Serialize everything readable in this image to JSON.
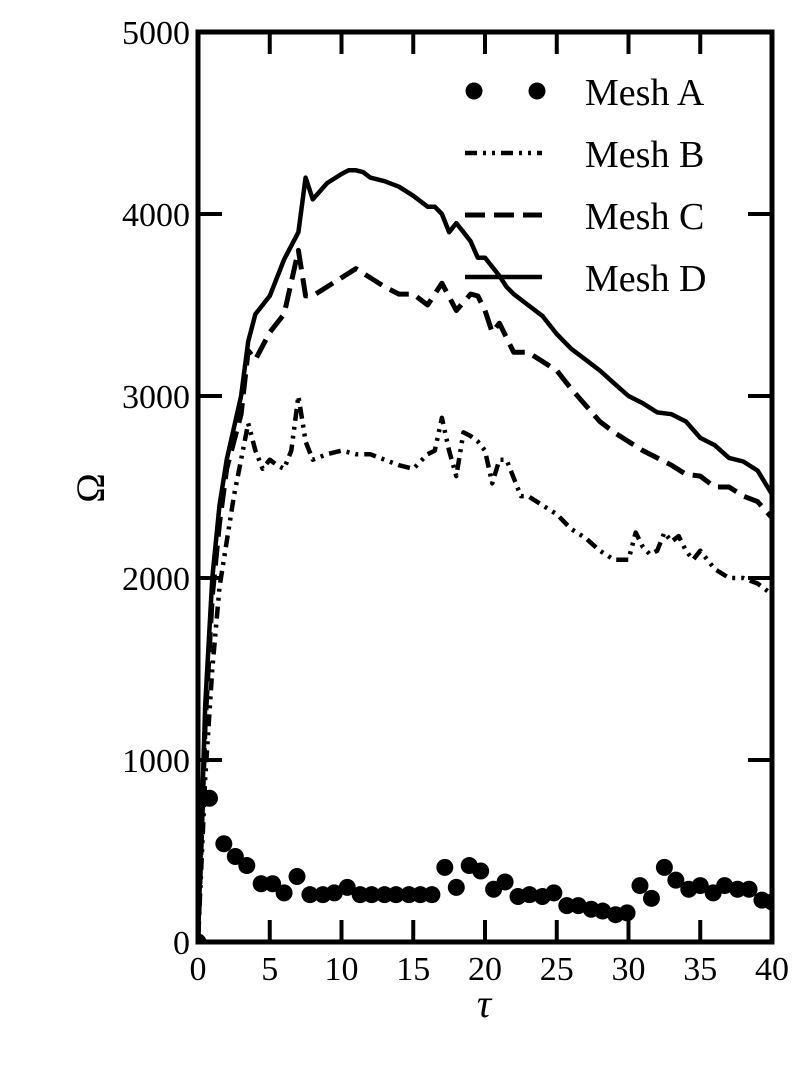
{
  "chart_data": {
    "type": "line",
    "title": "",
    "xlabel": "τ",
    "ylabel": "Ω",
    "xlim": [
      0,
      40
    ],
    "ylim": [
      0,
      5000
    ],
    "xticks": [
      0,
      5,
      10,
      15,
      20,
      25,
      30,
      35,
      40
    ],
    "yticks": [
      0,
      1000,
      2000,
      3000,
      4000,
      5000
    ],
    "xtick_labels": [
      "0",
      "5",
      "10",
      "15",
      "20",
      "25",
      "30",
      "35",
      "40"
    ],
    "ytick_labels": [
      "0",
      "1000",
      "2000",
      "3000",
      "4000",
      "5000"
    ],
    "grid": false,
    "legend_position": "top-right",
    "series": [
      {
        "name": "Mesh A",
        "style": "dots",
        "x": [
          0,
          0.8,
          1.8,
          2.6,
          3.4,
          4.4,
          5.2,
          6.0,
          6.9,
          7.8,
          8.7,
          9.5,
          10.4,
          11.3,
          12.1,
          13.0,
          13.8,
          14.7,
          15.5,
          16.3,
          17.2,
          18.0,
          18.9,
          19.7,
          20.6,
          21.4,
          22.3,
          23.1,
          24.0,
          24.8,
          25.7,
          26.5,
          27.4,
          28.2,
          29.1,
          29.9,
          30.8,
          31.6,
          32.5,
          33.3,
          34.2,
          35.0,
          35.9,
          36.7,
          37.6,
          38.4,
          39.3,
          40.0
        ],
        "values": [
          0,
          790,
          540,
          470,
          420,
          320,
          320,
          270,
          360,
          260,
          260,
          270,
          300,
          260,
          260,
          260,
          260,
          260,
          260,
          260,
          410,
          300,
          420,
          390,
          290,
          330,
          250,
          260,
          250,
          270,
          200,
          200,
          180,
          170,
          150,
          160,
          310,
          240,
          410,
          340,
          290,
          310,
          270,
          310,
          290,
          290,
          230,
          220
        ]
      },
      {
        "name": "Mesh B",
        "style": "dash-dot-dot",
        "x": [
          0,
          0.5,
          1.0,
          1.5,
          2.0,
          2.5,
          3.0,
          3.5,
          4.0,
          4.5,
          5.0,
          5.5,
          6.0,
          6.5,
          7.0,
          7.5,
          8.0,
          9.0,
          10.0,
          11.0,
          12.0,
          13.0,
          14.0,
          15.0,
          16.0,
          16.5,
          17.0,
          17.5,
          18.0,
          18.5,
          19.0,
          19.5,
          20.0,
          20.5,
          21.0,
          21.5,
          22.0,
          22.5,
          23.0,
          24.0,
          25.0,
          26.0,
          27.0,
          28.0,
          29.0,
          30.0,
          30.5,
          31.0,
          31.5,
          32.0,
          32.5,
          33.0,
          33.5,
          34.0,
          34.5,
          35.0,
          35.5,
          36.0,
          37.0,
          38.0,
          39.0,
          40.0
        ],
        "values": [
          0,
          900,
          1500,
          1950,
          2200,
          2450,
          2650,
          2850,
          2700,
          2600,
          2650,
          2620,
          2600,
          2700,
          3000,
          2750,
          2650,
          2680,
          2700,
          2680,
          2680,
          2650,
          2620,
          2600,
          2680,
          2700,
          2880,
          2700,
          2560,
          2800,
          2780,
          2750,
          2700,
          2520,
          2650,
          2650,
          2550,
          2450,
          2450,
          2400,
          2350,
          2270,
          2220,
          2150,
          2100,
          2100,
          2250,
          2170,
          2130,
          2150,
          2250,
          2200,
          2230,
          2150,
          2100,
          2150,
          2100,
          2050,
          2000,
          2000,
          1970,
          1910
        ]
      },
      {
        "name": "Mesh C",
        "style": "dashed",
        "x": [
          0,
          0.5,
          1.0,
          1.5,
          2.0,
          3.0,
          3.5,
          4.0,
          5.0,
          6.0,
          7.0,
          7.5,
          8.0,
          9.0,
          10.0,
          11.0,
          12.0,
          13.0,
          14.0,
          15.0,
          16.0,
          17.0,
          18.0,
          19.0,
          19.5,
          20.0,
          20.5,
          21.0,
          22.0,
          23.0,
          24.0,
          25.0,
          26.0,
          27.0,
          28.0,
          29.0,
          30.0,
          31.0,
          32.0,
          33.0,
          34.0,
          35.0,
          36.0,
          37.0,
          38.0,
          39.0,
          40.0
        ],
        "values": [
          0,
          1200,
          1900,
          2300,
          2600,
          2900,
          3250,
          3200,
          3350,
          3450,
          3800,
          3550,
          3550,
          3600,
          3650,
          3700,
          3650,
          3600,
          3560,
          3560,
          3500,
          3620,
          3470,
          3560,
          3550,
          3470,
          3350,
          3400,
          3240,
          3240,
          3190,
          3140,
          3040,
          2950,
          2860,
          2800,
          2750,
          2700,
          2660,
          2620,
          2570,
          2560,
          2500,
          2500,
          2450,
          2420,
          2330
        ]
      },
      {
        "name": "Mesh D",
        "style": "solid",
        "x": [
          0,
          0.5,
          1.0,
          1.5,
          2.0,
          3.0,
          3.5,
          4.0,
          4.5,
          5.0,
          6.0,
          7.0,
          7.5,
          8.0,
          9.0,
          10.0,
          10.5,
          11.0,
          11.5,
          12.0,
          13.0,
          14.0,
          15.0,
          16.0,
          16.5,
          17.0,
          17.5,
          18.0,
          18.5,
          19.0,
          19.5,
          20.0,
          21.0,
          21.5,
          22.0,
          23.0,
          24.0,
          25.0,
          26.0,
          27.0,
          28.0,
          29.0,
          30.0,
          31.0,
          32.0,
          33.0,
          34.0,
          35.0,
          36.0,
          37.0,
          38.0,
          39.0,
          40.0
        ],
        "values": [
          0,
          1300,
          2000,
          2400,
          2650,
          3000,
          3300,
          3450,
          3500,
          3550,
          3750,
          3900,
          4200,
          4080,
          4170,
          4220,
          4240,
          4240,
          4230,
          4200,
          4180,
          4150,
          4100,
          4040,
          4040,
          4000,
          3900,
          3950,
          3900,
          3850,
          3760,
          3760,
          3660,
          3600,
          3560,
          3500,
          3440,
          3340,
          3260,
          3200,
          3140,
          3070,
          3000,
          2960,
          2910,
          2900,
          2860,
          2770,
          2730,
          2660,
          2640,
          2590,
          2460
        ]
      }
    ]
  }
}
